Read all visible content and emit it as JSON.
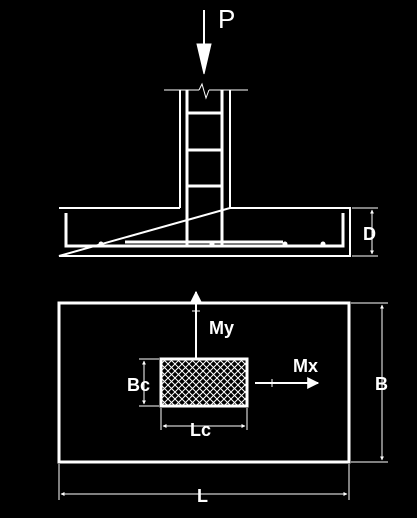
{
  "labels": {
    "load": "P",
    "depth": "D",
    "moment_y": "My",
    "moment_x": "Mx",
    "column_width": "Bc",
    "column_length": "Lc",
    "footing_width": "B",
    "footing_length": "L"
  },
  "colors": {
    "background": "#000000",
    "line": "#ffffff"
  }
}
